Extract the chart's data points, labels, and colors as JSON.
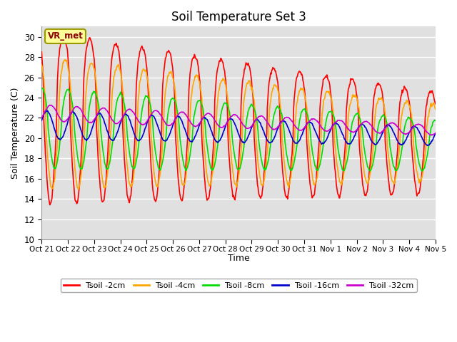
{
  "title": "Soil Temperature Set 3",
  "xlabel": "Time",
  "ylabel": "Soil Temperature (C)",
  "ylim": [
    10,
    31
  ],
  "yticks": [
    10,
    12,
    14,
    16,
    18,
    20,
    22,
    24,
    26,
    28,
    30
  ],
  "xtick_labels": [
    "Oct 21",
    "Oct 22",
    "Oct 23",
    "Oct 24",
    "Oct 25",
    "Oct 26",
    "Oct 27",
    "Oct 28",
    "Oct 29",
    "Oct 30",
    "Oct 31",
    "Nov 1",
    "Nov 2",
    "Nov 3",
    "Nov 4",
    "Nov 5"
  ],
  "annotation_text": "VR_met",
  "colors": {
    "Tsoil -2cm": "#FF0000",
    "Tsoil -4cm": "#FFA500",
    "Tsoil -8cm": "#00DD00",
    "Tsoil -16cm": "#0000CC",
    "Tsoil -32cm": "#CC00CC"
  },
  "bg_color": "#E0E0E0",
  "grid_color": "#FFFFFF",
  "n_days": 15
}
